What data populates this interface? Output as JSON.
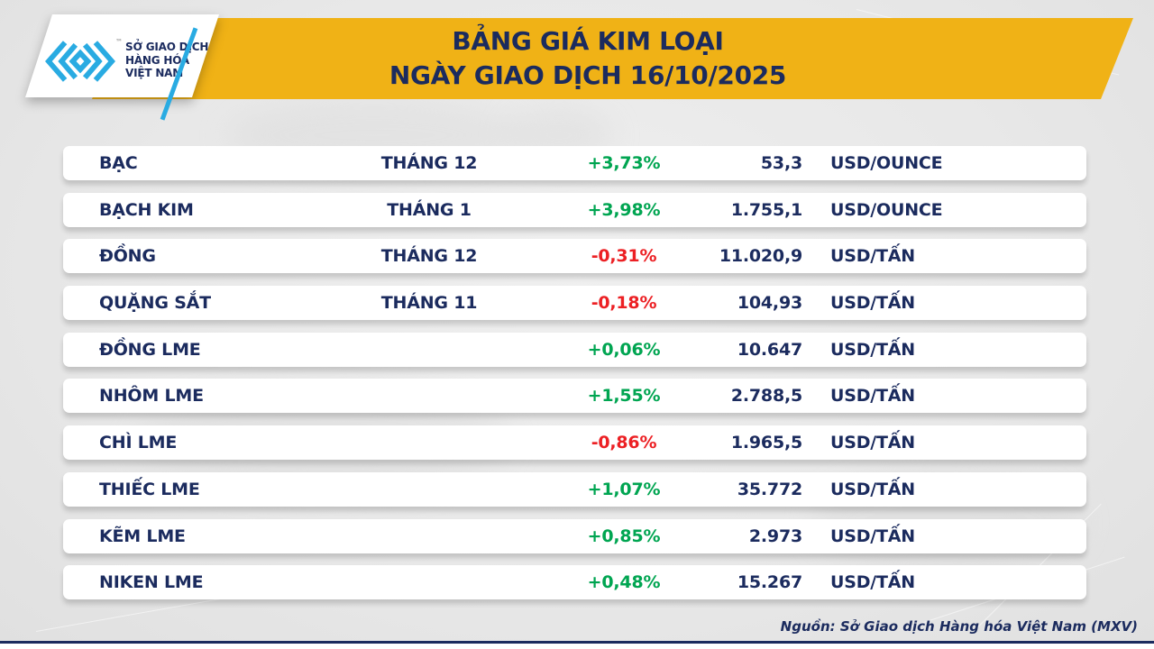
{
  "header": {
    "logo": {
      "org_lines": [
        "SỞ GIAO DỊCH",
        "HÀNG HÓA",
        "VIỆT NAM"
      ],
      "tm": "™"
    },
    "title_line1": "BẢNG GIÁ KIM LOẠI",
    "title_line2": "NGÀY GIAO DỊCH 16/10/2025"
  },
  "colors": {
    "banner_yellow": "#F0B216",
    "navy": "#1B2B5E",
    "positive_green": "#00A551",
    "negative_red": "#EC2024",
    "logo_cyan": "#29ABE2",
    "background_gray": "#E8E8E8"
  },
  "table": {
    "rows": [
      {
        "name": "BẠC",
        "month": "THÁNG 12",
        "change": "+3,73%",
        "price": "53,3",
        "unit": "USD/OUNCE"
      },
      {
        "name": "BẠCH KIM",
        "month": "THÁNG 1",
        "change": "+3,98%",
        "price": "1.755,1",
        "unit": "USD/OUNCE"
      },
      {
        "name": "ĐỒNG",
        "month": "THÁNG 12",
        "change": "-0,31%",
        "price": "11.020,9",
        "unit": "USD/TẤN"
      },
      {
        "name": "QUẶNG SẮT",
        "month": "THÁNG 11",
        "change": "-0,18%",
        "price": "104,93",
        "unit": "USD/TẤN"
      },
      {
        "name": "ĐỒNG LME",
        "month": "",
        "change": "+0,06%",
        "price": "10.647",
        "unit": "USD/TẤN"
      },
      {
        "name": "NHÔM LME",
        "month": "",
        "change": "+1,55%",
        "price": "2.788,5",
        "unit": "USD/TẤN"
      },
      {
        "name": "CHÌ LME",
        "month": "",
        "change": "-0,86%",
        "price": "1.965,5",
        "unit": "USD/TẤN"
      },
      {
        "name": "THIẾC LME",
        "month": "",
        "change": "+1,07%",
        "price": "35.772",
        "unit": "USD/TẤN"
      },
      {
        "name": "KẼM LME",
        "month": "",
        "change": "+0,85%",
        "price": "2.973",
        "unit": "USD/TẤN"
      },
      {
        "name": "NIKEN LME",
        "month": "",
        "change": "+0,48%",
        "price": "15.267",
        "unit": "USD/TẤN"
      }
    ]
  },
  "chart_data": {
    "type": "table",
    "title": "BẢNG GIÁ KIM LOẠI",
    "subtitle": "NGÀY GIAO DỊCH 16/10/2025",
    "source": "Nguồn: Sở Giao dịch Hàng hóa Việt Nam (MXV)",
    "rows": [
      {
        "name": "BẠC",
        "month": "THÁNG 12",
        "change_pct": 3.73,
        "price": 53.3,
        "unit": "USD/OUNCE"
      },
      {
        "name": "BẠCH KIM",
        "month": "THÁNG 1",
        "change_pct": 3.98,
        "price": 1755.1,
        "unit": "USD/OUNCE"
      },
      {
        "name": "ĐỒNG",
        "month": "THÁNG 12",
        "change_pct": -0.31,
        "price": 11020.9,
        "unit": "USD/TẤN"
      },
      {
        "name": "QUẶNG SẮT",
        "month": "THÁNG 11",
        "change_pct": -0.18,
        "price": 104.93,
        "unit": "USD/TẤN"
      },
      {
        "name": "ĐỒNG LME",
        "month": "",
        "change_pct": 0.06,
        "price": 10647,
        "unit": "USD/TẤN"
      },
      {
        "name": "NHÔM LME",
        "month": "",
        "change_pct": 1.55,
        "price": 2788.5,
        "unit": "USD/TẤN"
      },
      {
        "name": "CHÌ LME",
        "month": "",
        "change_pct": -0.86,
        "price": 1965.5,
        "unit": "USD/TẤN"
      },
      {
        "name": "THIẾC LME",
        "month": "",
        "change_pct": 1.07,
        "price": 35772,
        "unit": "USD/TẤN"
      },
      {
        "name": "KẼM LME",
        "month": "",
        "change_pct": 0.85,
        "price": 2973,
        "unit": "USD/TẤN"
      },
      {
        "name": "NIKEN LME",
        "month": "",
        "change_pct": 0.48,
        "price": 15267,
        "unit": "USD/TẤN"
      }
    ]
  },
  "footer": {
    "source": "Nguồn: Sở Giao dịch Hàng hóa Việt Nam (MXV)"
  }
}
